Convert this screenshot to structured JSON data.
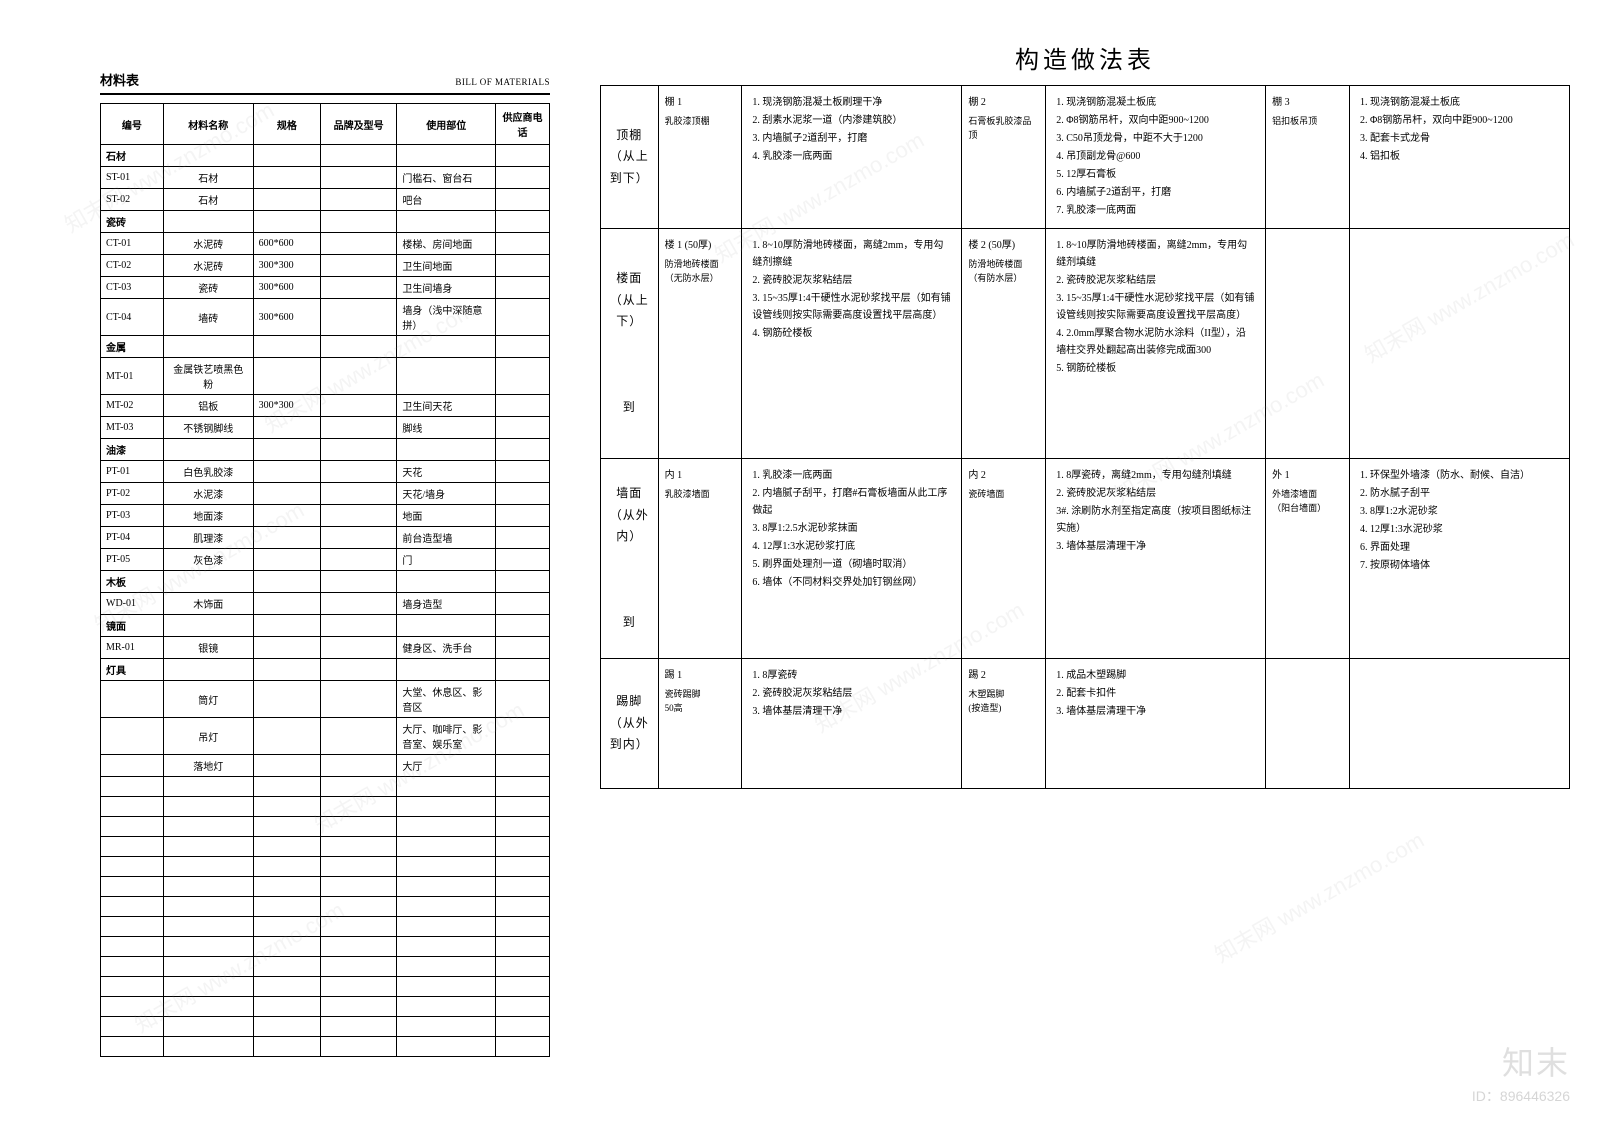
{
  "left": {
    "title": "材料表",
    "subtitle": "BILL OF MATERIALS",
    "headers": [
      "编号",
      "材料名称",
      "规格",
      "品牌及型号",
      "使用部位",
      "供应商电话"
    ],
    "rows": [
      {
        "type": "cat",
        "v": [
          "石材",
          "",
          "",
          "",
          "",
          ""
        ]
      },
      {
        "type": "d",
        "v": [
          "ST-01",
          "石材",
          "",
          "",
          "门槛石、窗台石",
          ""
        ]
      },
      {
        "type": "d",
        "v": [
          "ST-02",
          "石材",
          "",
          "",
          "吧台",
          ""
        ]
      },
      {
        "type": "cat",
        "v": [
          "瓷砖",
          "",
          "",
          "",
          "",
          ""
        ]
      },
      {
        "type": "d",
        "v": [
          "CT-01",
          "水泥砖",
          "600*600",
          "",
          "楼梯、房间地面",
          ""
        ]
      },
      {
        "type": "d",
        "v": [
          "CT-02",
          "水泥砖",
          "300*300",
          "",
          "卫生间地面",
          ""
        ]
      },
      {
        "type": "d",
        "v": [
          "CT-03",
          "瓷砖",
          "300*600",
          "",
          "卫生间墙身",
          ""
        ]
      },
      {
        "type": "d",
        "v": [
          "CT-04",
          "墙砖",
          "300*600",
          "",
          "墙身（浅中深随意拼）",
          ""
        ]
      },
      {
        "type": "cat",
        "v": [
          "金属",
          "",
          "",
          "",
          "",
          ""
        ]
      },
      {
        "type": "d",
        "v": [
          "MT-01",
          "金属铁艺喷黑色粉",
          "",
          "",
          "",
          ""
        ]
      },
      {
        "type": "d",
        "v": [
          "MT-02",
          "铝板",
          "300*300",
          "",
          "卫生间天花",
          ""
        ]
      },
      {
        "type": "d",
        "v": [
          "MT-03",
          "不锈钢脚线",
          "",
          "",
          "脚线",
          ""
        ]
      },
      {
        "type": "cat",
        "v": [
          "油漆",
          "",
          "",
          "",
          "",
          ""
        ]
      },
      {
        "type": "d",
        "v": [
          "PT-01",
          "白色乳胶漆",
          "",
          "",
          "天花",
          ""
        ]
      },
      {
        "type": "d",
        "v": [
          "PT-02",
          "水泥漆",
          "",
          "",
          "天花/墙身",
          ""
        ]
      },
      {
        "type": "d",
        "v": [
          "PT-03",
          "地面漆",
          "",
          "",
          "地面",
          ""
        ]
      },
      {
        "type": "d",
        "v": [
          "PT-04",
          "肌理漆",
          "",
          "",
          "前台造型墙",
          ""
        ]
      },
      {
        "type": "d",
        "v": [
          "PT-05",
          "灰色漆",
          "",
          "",
          "门",
          ""
        ]
      },
      {
        "type": "cat",
        "v": [
          "木板",
          "",
          "",
          "",
          "",
          ""
        ]
      },
      {
        "type": "d",
        "v": [
          "WD-01",
          "木饰面",
          "",
          "",
          "墙身造型",
          ""
        ]
      },
      {
        "type": "cat",
        "v": [
          "镜面",
          "",
          "",
          "",
          "",
          ""
        ]
      },
      {
        "type": "d",
        "v": [
          "MR-01",
          "银镜",
          "",
          "",
          "健身区、洗手台",
          ""
        ]
      },
      {
        "type": "cat",
        "v": [
          "灯具",
          "",
          "",
          "",
          "",
          ""
        ]
      },
      {
        "type": "d",
        "v": [
          "",
          "筒灯",
          "",
          "",
          "大堂、休息区、影音区",
          ""
        ]
      },
      {
        "type": "d",
        "v": [
          "",
          "吊灯",
          "",
          "",
          "大厅、咖啡厅、影音室、娱乐室",
          ""
        ]
      },
      {
        "type": "d",
        "v": [
          "",
          "落地灯",
          "",
          "",
          "大厅",
          ""
        ]
      },
      {
        "type": "e"
      },
      {
        "type": "e"
      },
      {
        "type": "e"
      },
      {
        "type": "e"
      },
      {
        "type": "e"
      },
      {
        "type": "e"
      },
      {
        "type": "e"
      },
      {
        "type": "e"
      },
      {
        "type": "e"
      },
      {
        "type": "e"
      },
      {
        "type": "e"
      },
      {
        "type": "e"
      },
      {
        "type": "e"
      },
      {
        "type": "e"
      }
    ]
  },
  "right": {
    "title": "构造做法表",
    "sections": [
      {
        "label": "顶棚\n（从上\n到下）",
        "rowClass": "row-short",
        "variants": [
          {
            "title": "棚 1",
            "sub": "乳胶漆顶棚",
            "steps": [
              "1. 现浇钢筋混凝土板刷理干净",
              "2. 刮素水泥浆一道（内渗建筑胶）",
              "3. 内墙腻子2道刮平，打磨",
              "4. 乳胶漆一底两面"
            ]
          },
          {
            "title": "棚 2",
            "sub": "石膏板乳胶漆品顶",
            "steps": [
              "1. 现浇钢筋混凝土板底",
              "2. Φ8钢筋吊杆，双向中距900~1200",
              "3. C50吊顶龙骨，中距不大于1200",
              "4. 吊顶副龙骨@600",
              "5. 12厚石膏板",
              "6. 内墙腻子2道刮平，打磨",
              "7. 乳胶漆一底两面"
            ]
          },
          {
            "title": "棚 3",
            "sub": "铝扣板吊顶",
            "steps": [
              "1. 现浇钢筋混凝土板底",
              "2. Φ8钢筋吊杆，双向中距900~1200",
              "3. 配套卡式龙骨",
              "4. 铝扣板"
            ]
          }
        ]
      },
      {
        "label": "楼面\n（从上\n下）\n\n\n\n到",
        "rowClass": "row-tall",
        "variants": [
          {
            "title": "楼 1 (50厚)",
            "sub": "防滑地砖楼面\n（无防水层）",
            "steps": [
              "1. 8~10厚防滑地砖楼面，离缝2mm，专用勾缝剂擦缝",
              "2. 瓷砖胶泥灰浆粘结层",
              "3. 15~35厚1:4干硬性水泥砂浆找平层（如有铺设管线则按实际需要高度设置找平层高度）",
              "4. 钢筋砼楼板"
            ]
          },
          {
            "title": "楼 2 (50厚)",
            "sub": "防滑地砖楼面\n（有防水层）",
            "steps": [
              "1. 8~10厚防滑地砖楼面，离缝2mm，专用勾缝剂填缝",
              "2. 瓷砖胶泥灰浆粘结层",
              "3. 15~35厚1:4干硬性水泥砂浆找平层（如有铺设管线则按实际需要高度设置找平层高度）",
              "4. 2.0mm厚聚合物水泥防水涂料（II型），沿墙柱交界处翻起高出装修完成面300",
              "5. 钢筋砼楼板"
            ]
          },
          {
            "title": "",
            "sub": "",
            "steps": []
          }
        ]
      },
      {
        "label": "墙面\n（从外\n内）\n\n\n\n到",
        "rowClass": "row-mid",
        "variants": [
          {
            "title": "内 1",
            "sub": "乳胶漆墙面",
            "steps": [
              "1. 乳胶漆一底两面",
              "2. 内墙腻子刮平，打磨#石膏板墙面从此工序做起",
              "3. 8厚1:2.5水泥砂浆抹面",
              "4. 12厚1:3水泥砂浆打底",
              "5. 刷界面处理剂一道（砌墙时取消）",
              "6. 墙体（不同材料交界处加钉钢丝网）"
            ]
          },
          {
            "title": "内 2",
            "sub": "瓷砖墙面",
            "steps": [
              "1. 8厚瓷砖，离缝2mm，专用勾缝剂填缝",
              "2. 瓷砖胶泥灰浆粘结层",
              "3#. 涂刷防水剂至指定高度（按项目图纸标注实施）",
              "3. 墙体基层清理干净"
            ]
          },
          {
            "title": "外 1",
            "sub": "外墙漆墙面\n（阳台墙面）",
            "steps": [
              "1. 环保型外墙漆（防水、耐候、自洁）",
              "2. 防水腻子刮平",
              "3. 8厚1:2水泥砂浆",
              "4. 12厚1:3水泥砂浆",
              "6. 界面处理",
              "7. 按原砌体墙体"
            ]
          }
        ]
      },
      {
        "label": "踢脚\n（从外\n到内）",
        "rowClass": "row-short",
        "variants": [
          {
            "title": "踢 1",
            "sub": "瓷砖踢脚\n50高",
            "steps": [
              "1. 8厚瓷砖",
              "2. 瓷砖胶泥灰浆粘结层",
              "3. 墙体基层清理干净"
            ]
          },
          {
            "title": "踢 2",
            "sub": "木塑踢脚\n(按造型)",
            "steps": [
              "1. 成品木塑踢脚",
              "2. 配套卡扣件",
              "3. 墙体基层清理干净"
            ]
          },
          {
            "title": "",
            "sub": "",
            "steps": []
          }
        ]
      }
    ]
  },
  "watermark": {
    "brand": "知末",
    "id_label": "ID：896446326",
    "diag": "知末网 www.znzmo.com"
  }
}
